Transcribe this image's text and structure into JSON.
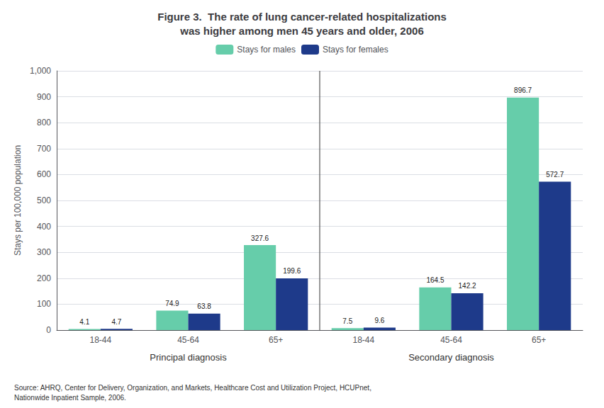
{
  "chart_data": {
    "type": "bar",
    "title": "Figure 3.  The rate of lung cancer-related hospitalizations\nwas higher among men 45 years and older, 2006",
    "ylabel": "Stays per 100,000 population",
    "categories": [
      "18-44",
      "45-64",
      "65+",
      "18-44",
      "45-64",
      "65+"
    ],
    "series": [
      {
        "name": "Stays for males",
        "color": "#66CDAA",
        "values": [
          4.1,
          74.9,
          327.6,
          7.5,
          164.5,
          896.7
        ]
      },
      {
        "name": "Stays for females",
        "color": "#1E3A8A",
        "values": [
          4.7,
          63.8,
          199.6,
          9.6,
          142.2,
          572.7
        ]
      }
    ],
    "ylim": [
      0,
      1000
    ],
    "yticks": [
      0,
      100,
      200,
      300,
      400,
      500,
      600,
      700,
      800,
      900,
      {
        "value": 1000,
        "label": "1,000"
      }
    ],
    "grid": true,
    "legend": "top",
    "data_labels": true,
    "annotations": [
      "Principal diagnosis",
      "Secondary diagnosis",
      "Source: AHRQ, Center for Delivery, Organization, and Markets, Healthcare Cost and Utilization Project, HCUPnet,\nNationwide Inpatient Sample, 2006."
    ]
  }
}
